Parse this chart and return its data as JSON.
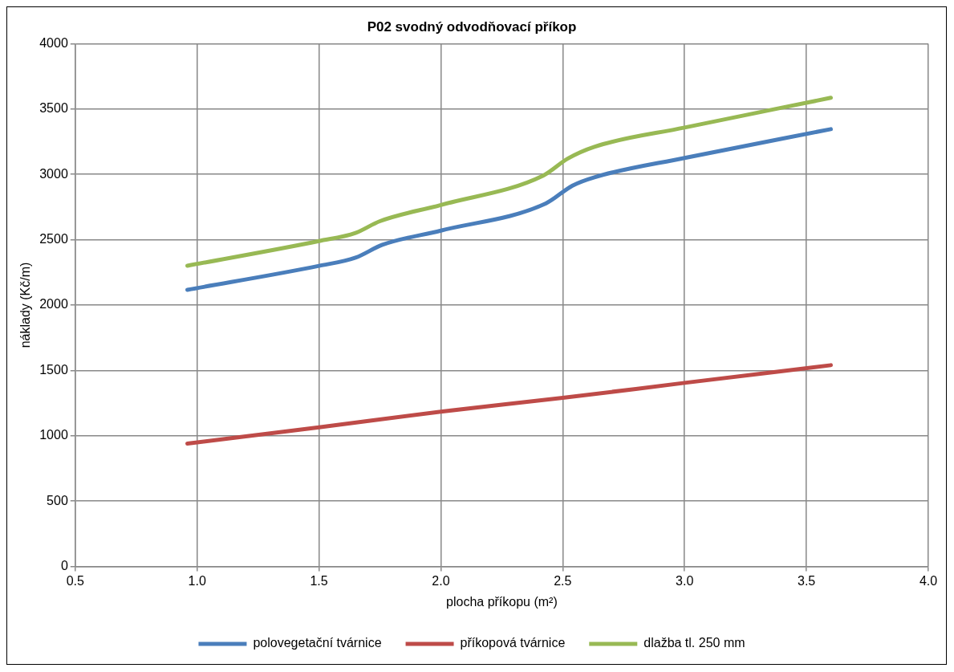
{
  "chart_data": {
    "type": "line",
    "title": "P02 svodný odvodňovací příkop",
    "xlabel": "plocha příkopu (m²)",
    "ylabel": "náklady (Kč/m)",
    "xlim": [
      0.5,
      4.0
    ],
    "xticks": [
      {
        "value": 0.5,
        "label": "0.5"
      },
      {
        "value": 1,
        "label": "1.0"
      },
      {
        "value": 1.5,
        "label": "1.5"
      },
      {
        "value": 2,
        "label": "2.0"
      },
      {
        "value": 2.5,
        "label": "2.5"
      },
      {
        "value": 3,
        "label": "3.0"
      },
      {
        "value": 3.5,
        "label": "3.5"
      },
      {
        "value": 4,
        "label": "4.0"
      }
    ],
    "ylim": [
      0,
      4000
    ],
    "yticks": [
      0,
      500,
      1000,
      1500,
      2000,
      2500,
      3000,
      3500,
      4000
    ],
    "grid": true,
    "legend": "bottom",
    "marker": "none",
    "line_style": "solid",
    "series": [
      {
        "name": "polovegetační tvárnice",
        "color": "#4a7ebb",
        "x": [
          0.96,
          1.5,
          1.65,
          1.76,
          2.0,
          2.43,
          2.54,
          2.63,
          3.0,
          3.6
        ],
        "values": [
          2117,
          2300,
          2363,
          2461,
          2570,
          2777,
          2914,
          2978,
          3126,
          3346
        ]
      },
      {
        "name": "příkopová tvárnice",
        "color": "#be4b48",
        "x": [
          0.96,
          1.5,
          2.0,
          2.5,
          3.0,
          3.6
        ],
        "values": [
          941,
          1065,
          1185,
          1290,
          1405,
          1540
        ]
      },
      {
        "name": "dlažba tl. 250 mm",
        "color": "#98b954",
        "x": [
          0.96,
          1.5,
          1.65,
          1.75,
          2.0,
          2.42,
          2.52,
          2.63,
          3.0,
          3.6
        ],
        "values": [
          2301,
          2490,
          2552,
          2642,
          2766,
          2991,
          3120,
          3211,
          3358,
          3586
        ]
      }
    ]
  }
}
